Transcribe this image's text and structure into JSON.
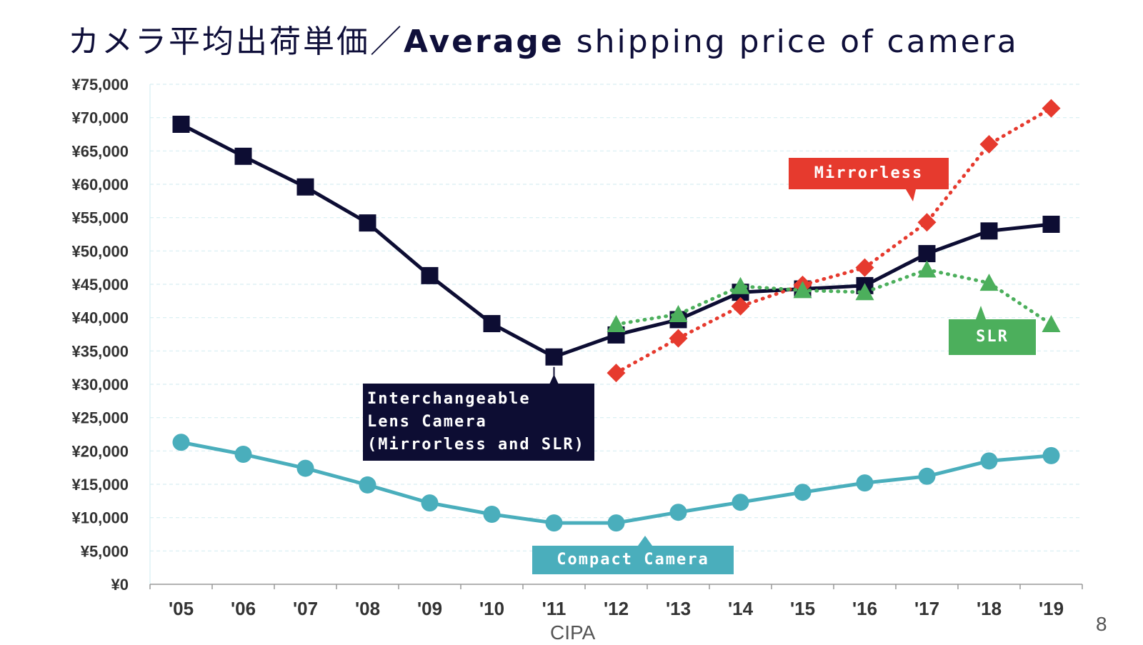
{
  "title": {
    "jp": "カメラ平均出荷単価／",
    "en_bold": "Average",
    "en_rest": " shipping price of camera"
  },
  "source": "CIPA",
  "page_number": "8",
  "callouts": {
    "ilc_line1": "Interchangeable",
    "ilc_line2": "Lens Camera",
    "ilc_line3": "(Mirrorless and SLR)",
    "mirrorless": "Mirrorless",
    "slr": "SLR",
    "compact": "Compact Camera"
  },
  "colors": {
    "ilc": "#0d0d33",
    "mirrorless": "#e63a2e",
    "slr": "#4caf5c",
    "compact": "#4aaebc",
    "grid": "#d6eef2",
    "axis_text": "#333333"
  },
  "chart_data": {
    "type": "line",
    "categories": [
      "'05",
      "'06",
      "'07",
      "'08",
      "'09",
      "'10",
      "'11",
      "'12",
      "'13",
      "'14",
      "'15",
      "'16",
      "'17",
      "'18",
      "'19"
    ],
    "y_tick_labels": [
      "¥0",
      "¥5,000",
      "¥10,000",
      "¥15,000",
      "¥20,000",
      "¥25,000",
      "¥30,000",
      "¥35,000",
      "¥40,000",
      "¥45,000",
      "¥50,000",
      "¥55,000",
      "¥60,000",
      "¥65,000",
      "¥70,000",
      "¥75,000"
    ],
    "ylim": [
      0,
      75000
    ],
    "grid": true,
    "series": [
      {
        "name": "Interchangeable Lens Camera (Mirrorless and SLR)",
        "key": "ilc",
        "marker": "square",
        "dash": false,
        "values": [
          69000,
          64200,
          59600,
          54200,
          46300,
          39100,
          34100,
          37400,
          39700,
          43800,
          44300,
          44800,
          49600,
          53000,
          54000
        ]
      },
      {
        "name": "Mirrorless",
        "key": "mirrorless",
        "marker": "diamond",
        "dash": true,
        "values": [
          null,
          null,
          null,
          null,
          null,
          null,
          null,
          31700,
          36900,
          41700,
          44900,
          47500,
          54300,
          66000,
          71400
        ]
      },
      {
        "name": "SLR",
        "key": "slr",
        "marker": "triangle",
        "dash": true,
        "values": [
          null,
          null,
          null,
          null,
          null,
          null,
          null,
          39000,
          40500,
          44700,
          44100,
          43800,
          47200,
          45200,
          39000
        ]
      },
      {
        "name": "Compact Camera",
        "key": "compact",
        "marker": "circle",
        "dash": false,
        "values": [
          21300,
          19500,
          17400,
          14900,
          12200,
          10500,
          9200,
          9200,
          10800,
          12300,
          13800,
          15200,
          16200,
          18500,
          19300
        ]
      }
    ]
  }
}
